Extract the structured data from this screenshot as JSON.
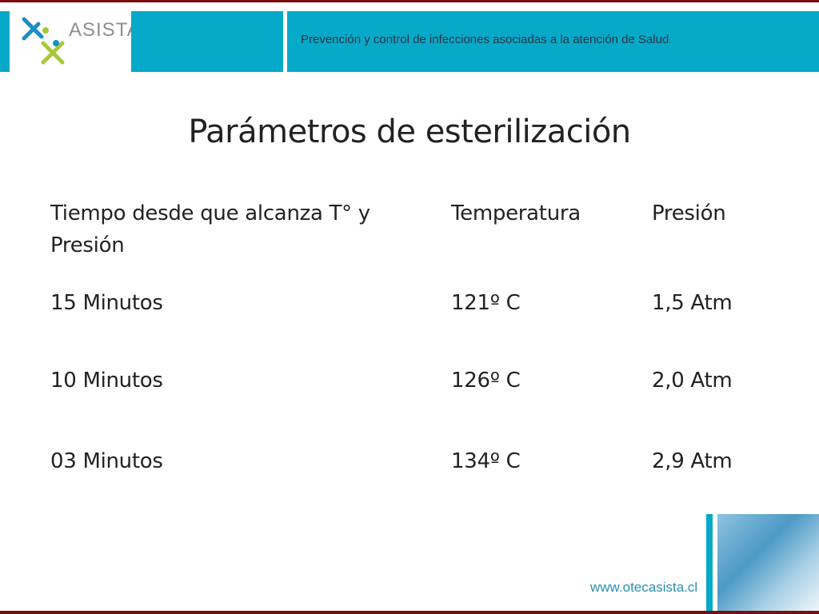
{
  "header": {
    "logo_text": "ASISTA",
    "subtitle": "Prevención y control de infecciones asociadas a la atención de Salud"
  },
  "title": "Parámetros de esterilización",
  "table": {
    "headers": [
      "Tiempo desde que alcanza T° y Presión",
      "Temperatura",
      "Presión"
    ],
    "rows": [
      [
        "15 Minutos",
        "121º C",
        "1,5 Atm"
      ],
      [
        "10 Minutos",
        "126º C",
        "2,0 Atm"
      ],
      [
        "03 Minutos",
        "134º C",
        "2,9 Atm"
      ]
    ]
  },
  "footer": {
    "url": "www.otecasista.cl"
  },
  "colors": {
    "accent": "#07a9c9",
    "border": "#7a0e10",
    "logo_green": "#a8c83a"
  }
}
